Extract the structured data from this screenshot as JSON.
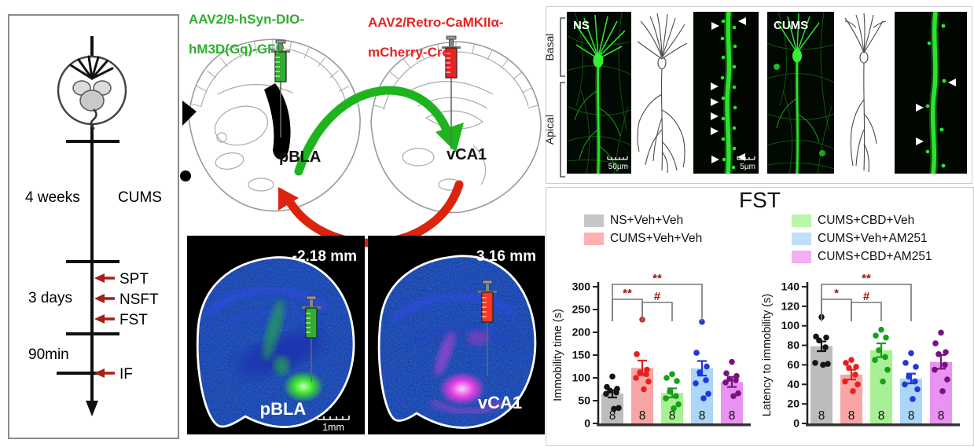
{
  "timeline": {
    "phase1": {
      "duration": "4 weeks",
      "label": "CUMS"
    },
    "phase2": {
      "duration": "3 days",
      "tests": [
        "SPT",
        "NSFT",
        "FST"
      ]
    },
    "phase3": {
      "duration": "90min",
      "test": "IF"
    }
  },
  "viral": {
    "green_construct": {
      "line1": "AAV2/9-hSyn-DIO-",
      "line2": "hM3D(Gq)-GFP"
    },
    "red_construct": {
      "line1": "AAV2/Retro-CaMKIIα-",
      "line2": "mCherry-Cre"
    },
    "source_region": "pBLA",
    "target_region": "vCA1",
    "accent_green": "#2fae2f",
    "accent_red": "#e82323"
  },
  "histology": {
    "left": {
      "ap_coordinate": "-2.18 mm",
      "region": "pBLA",
      "scale_bar": "1mm"
    },
    "right": {
      "ap_coordinate": "-3.16 mm",
      "region": "vCA1"
    }
  },
  "spines": {
    "dendrite_labels": {
      "basal": "Basal",
      "apical": "Apical"
    },
    "groups": [
      {
        "label": "NS",
        "scale_main": "50µm",
        "scale_spine": "5µm"
      },
      {
        "label": "CUMS"
      }
    ]
  },
  "fst": {
    "title": "FST",
    "legend": [
      {
        "label": "NS+Veh+Veh",
        "color": "#c6c6c6"
      },
      {
        "label": "CUMS+Veh+Veh",
        "color": "#ffb0b0"
      },
      {
        "label": "CUMS+CBD+Veh",
        "color": "#b9f6a6"
      },
      {
        "label": "CUMS+Veh+AM251",
        "color": "#bfe0f8"
      },
      {
        "label": "CUMS+CBD+AM251",
        "color": "#f4aef6"
      }
    ]
  },
  "chart_data": [
    {
      "type": "bar",
      "title": "FST",
      "ylabel": "Immobility time (s)",
      "ylim": [
        0,
        300
      ],
      "yticks": [
        0,
        50,
        100,
        150,
        200,
        250,
        300
      ],
      "categories": [
        "NS+Veh+Veh",
        "CUMS+Veh+Veh",
        "CUMS+CBD+Veh",
        "CUMS+Veh+AM251",
        "CUMS+CBD+AM251"
      ],
      "values": [
        65,
        122,
        67,
        121,
        91
      ],
      "sem": [
        8,
        16,
        10,
        16,
        11
      ],
      "n": [
        8,
        8,
        8,
        8,
        8
      ],
      "points": [
        [
          103,
          80,
          76,
          72,
          68,
          65,
          34,
          32
        ],
        [
          228,
          152,
          118,
          112,
          108,
          100,
          92,
          75
        ],
        [
          108,
          100,
          93,
          70,
          60,
          55,
          42,
          33
        ],
        [
          223,
          155,
          125,
          112,
          95,
          88,
          65,
          55
        ],
        [
          135,
          110,
          104,
          98,
          95,
          90,
          66,
          60
        ]
      ],
      "bar_colors": [
        "#bcbcbc",
        "#f9a5a5",
        "#a8f095",
        "#abd6f7",
        "#e893f0"
      ],
      "point_colors": [
        "#141414",
        "#e62020",
        "#16a016",
        "#2038dd",
        "#781280"
      ],
      "significance": [
        {
          "bars": [
            0,
            1
          ],
          "label": "**"
        },
        {
          "bars": [
            1,
            2
          ],
          "label": "#"
        },
        {
          "bars": [
            0,
            3
          ],
          "label": "**"
        }
      ],
      "sig_color": "#9e1010",
      "grid": false,
      "legend_position": "top"
    },
    {
      "type": "bar",
      "title": "FST",
      "ylabel": "Latency to immobility (s)",
      "ylim": [
        0,
        140
      ],
      "yticks": [
        0,
        20,
        40,
        60,
        80,
        100,
        120,
        140
      ],
      "categories": [
        "NS+Veh+Veh",
        "CUMS+Veh+Veh",
        "CUMS+CBD+Veh",
        "CUMS+Veh+AM251",
        "CUMS+CBD+AM251"
      ],
      "values": [
        79,
        50,
        75,
        46,
        63
      ],
      "sem": [
        5,
        5,
        7,
        5,
        7
      ],
      "n": [
        8,
        8,
        8,
        8,
        8
      ],
      "points": [
        [
          109,
          89,
          88,
          85,
          78,
          62,
          61,
          60
        ],
        [
          65,
          62,
          58,
          57,
          50,
          43,
          40,
          33
        ],
        [
          96,
          90,
          88,
          75,
          68,
          65,
          55,
          43
        ],
        [
          72,
          62,
          58,
          48,
          43,
          40,
          35,
          25
        ],
        [
          93,
          82,
          73,
          71,
          60,
          55,
          45,
          33
        ]
      ],
      "bar_colors": [
        "#bcbcbc",
        "#f9a5a5",
        "#a8f095",
        "#abd6f7",
        "#e893f0"
      ],
      "point_colors": [
        "#141414",
        "#e62020",
        "#16a016",
        "#2038dd",
        "#781280"
      ],
      "significance": [
        {
          "bars": [
            0,
            1
          ],
          "label": "*"
        },
        {
          "bars": [
            1,
            2
          ],
          "label": "#"
        },
        {
          "bars": [
            0,
            3
          ],
          "label": "**"
        }
      ],
      "sig_color": "#9e1010",
      "grid": false,
      "legend_position": "top"
    }
  ]
}
